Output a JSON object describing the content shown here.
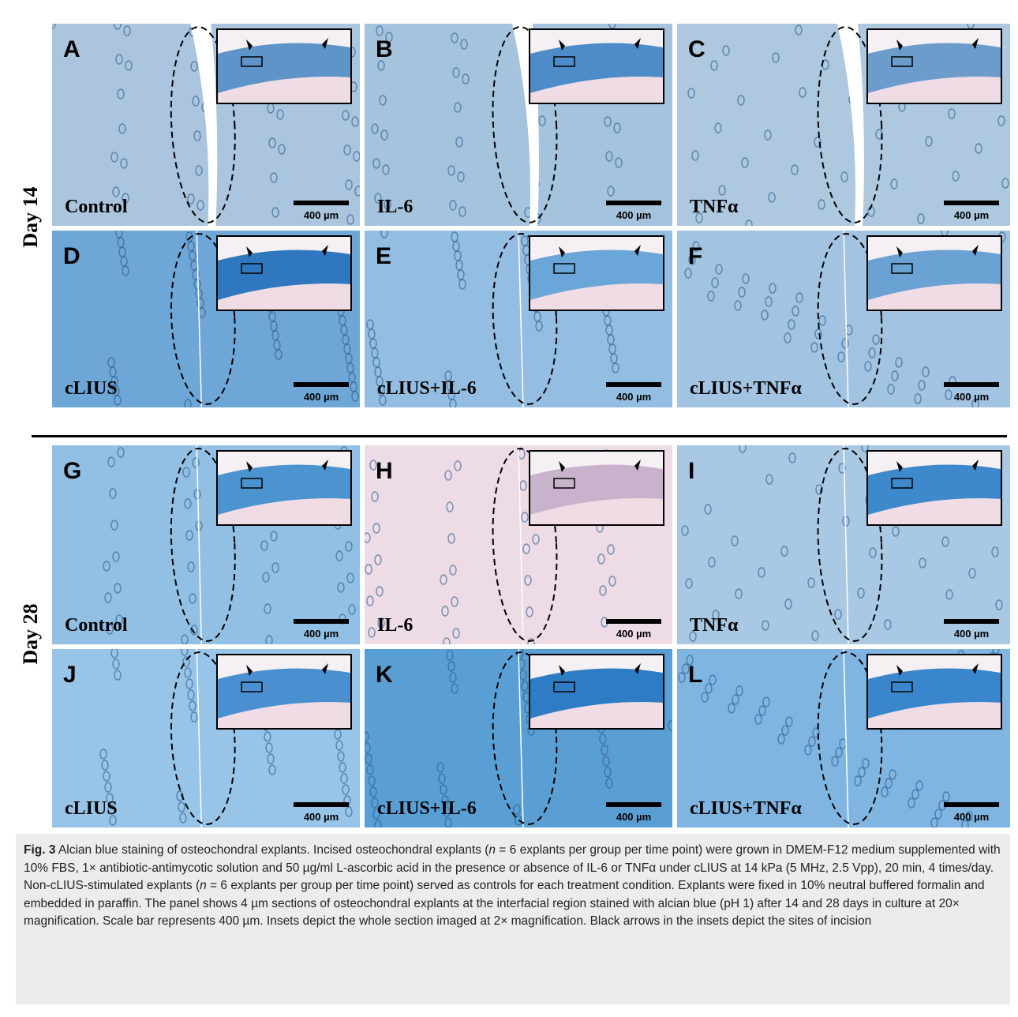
{
  "figure": {
    "row_labels": [
      "Day 14",
      "Day 28"
    ],
    "panels": [
      {
        "letter": "A",
        "label": "Control",
        "scale": "400 µm"
      },
      {
        "letter": "B",
        "label": "IL-6",
        "scale": "400 µm"
      },
      {
        "letter": "C",
        "label": "TNFα",
        "scale": "400 µm"
      },
      {
        "letter": "D",
        "label": "cLIUS",
        "scale": "400 µm"
      },
      {
        "letter": "E",
        "label": "cLIUS+IL-6",
        "scale": "400 µm"
      },
      {
        "letter": "F",
        "label": "cLIUS+TNFα",
        "scale": "400 µm"
      },
      {
        "letter": "G",
        "label": "Control",
        "scale": "400 µm"
      },
      {
        "letter": "H",
        "label": "IL-6",
        "scale": "400 µm"
      },
      {
        "letter": "I",
        "label": "TNFα",
        "scale": "400 µm"
      },
      {
        "letter": "J",
        "label": "cLIUS",
        "scale": "400 µm"
      },
      {
        "letter": "K",
        "label": "cLIUS+IL-6",
        "scale": "400 µm"
      },
      {
        "letter": "L",
        "label": "cLIUS+TNFα",
        "scale": "400 µm"
      }
    ]
  },
  "caption": {
    "label": "Fig. 3",
    "segments": [
      "Alcian blue staining of osteochondral explants. Incised osteochondral explants (",
      "n",
      " = 6 explants per group per time point) were grown in DMEM-F12 medium supplemented with 10% FBS, 1× antibiotic-antimycotic solution and 50 µg/ml L-ascorbic acid in the presence or absence of IL-6 or TNFα under cLIUS at 14 kPa (5 MHz, 2.5 Vpp), 20 min, 4 times/day. Non-cLIUS-stimulated explants (",
      "n",
      " = 6 explants per group per time point) served as controls for each treatment condition. Explants were fixed in 10% neutral buffered formalin and embedded in paraffin. The panel shows 4 µm sections of osteochondral explants at the interfacial region stained with alcian blue (pH 1) after 14 and 28 days in culture at 20× magnification. Scale bar represents 400 µm. Insets depict the whole section imaged at 2× magnification. Black arrows in the insets depict the sites of incision"
    ]
  }
}
